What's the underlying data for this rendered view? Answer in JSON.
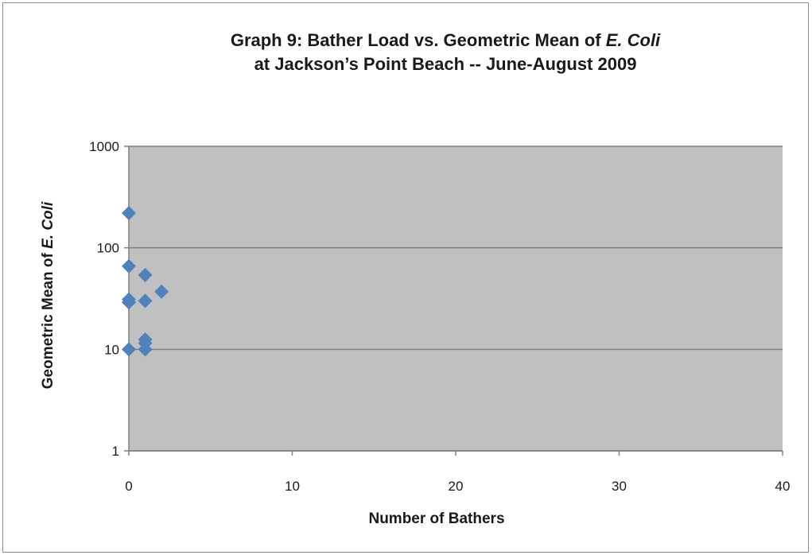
{
  "chart_data": {
    "type": "scatter",
    "title_lines": [
      {
        "text": "Graph 9: Bather Load vs. Geometric Mean of ",
        "italic": "E. Coli"
      },
      {
        "text": "at Jackson’s  Point Beach  -- June-August  2009",
        "italic": ""
      }
    ],
    "xlabel": "Number of Bathers",
    "ylabel": {
      "text": "Geometric Mean of ",
      "italic": "E. Coli"
    },
    "xlim": [
      0,
      40
    ],
    "ylim": [
      1,
      1000
    ],
    "yscale": "log",
    "xticks": [
      "0",
      "10",
      "20",
      "30",
      "40"
    ],
    "yticks": [
      "1",
      "10",
      "100",
      "1000"
    ],
    "grid": "horizontal major",
    "plot_background": "#c0c0c0",
    "marker_color": "#4f81bd",
    "marker": "diamond",
    "series": [
      {
        "points": [
          {
            "x": 0,
            "y": 220
          },
          {
            "x": 0,
            "y": 66
          },
          {
            "x": 0,
            "y": 31
          },
          {
            "x": 0,
            "y": 29
          },
          {
            "x": 0,
            "y": 10
          },
          {
            "x": 1,
            "y": 54
          },
          {
            "x": 1,
            "y": 30
          },
          {
            "x": 1,
            "y": 12.5
          },
          {
            "x": 1,
            "y": 11.5
          },
          {
            "x": 1,
            "y": 10
          },
          {
            "x": 2,
            "y": 37
          }
        ]
      }
    ]
  }
}
